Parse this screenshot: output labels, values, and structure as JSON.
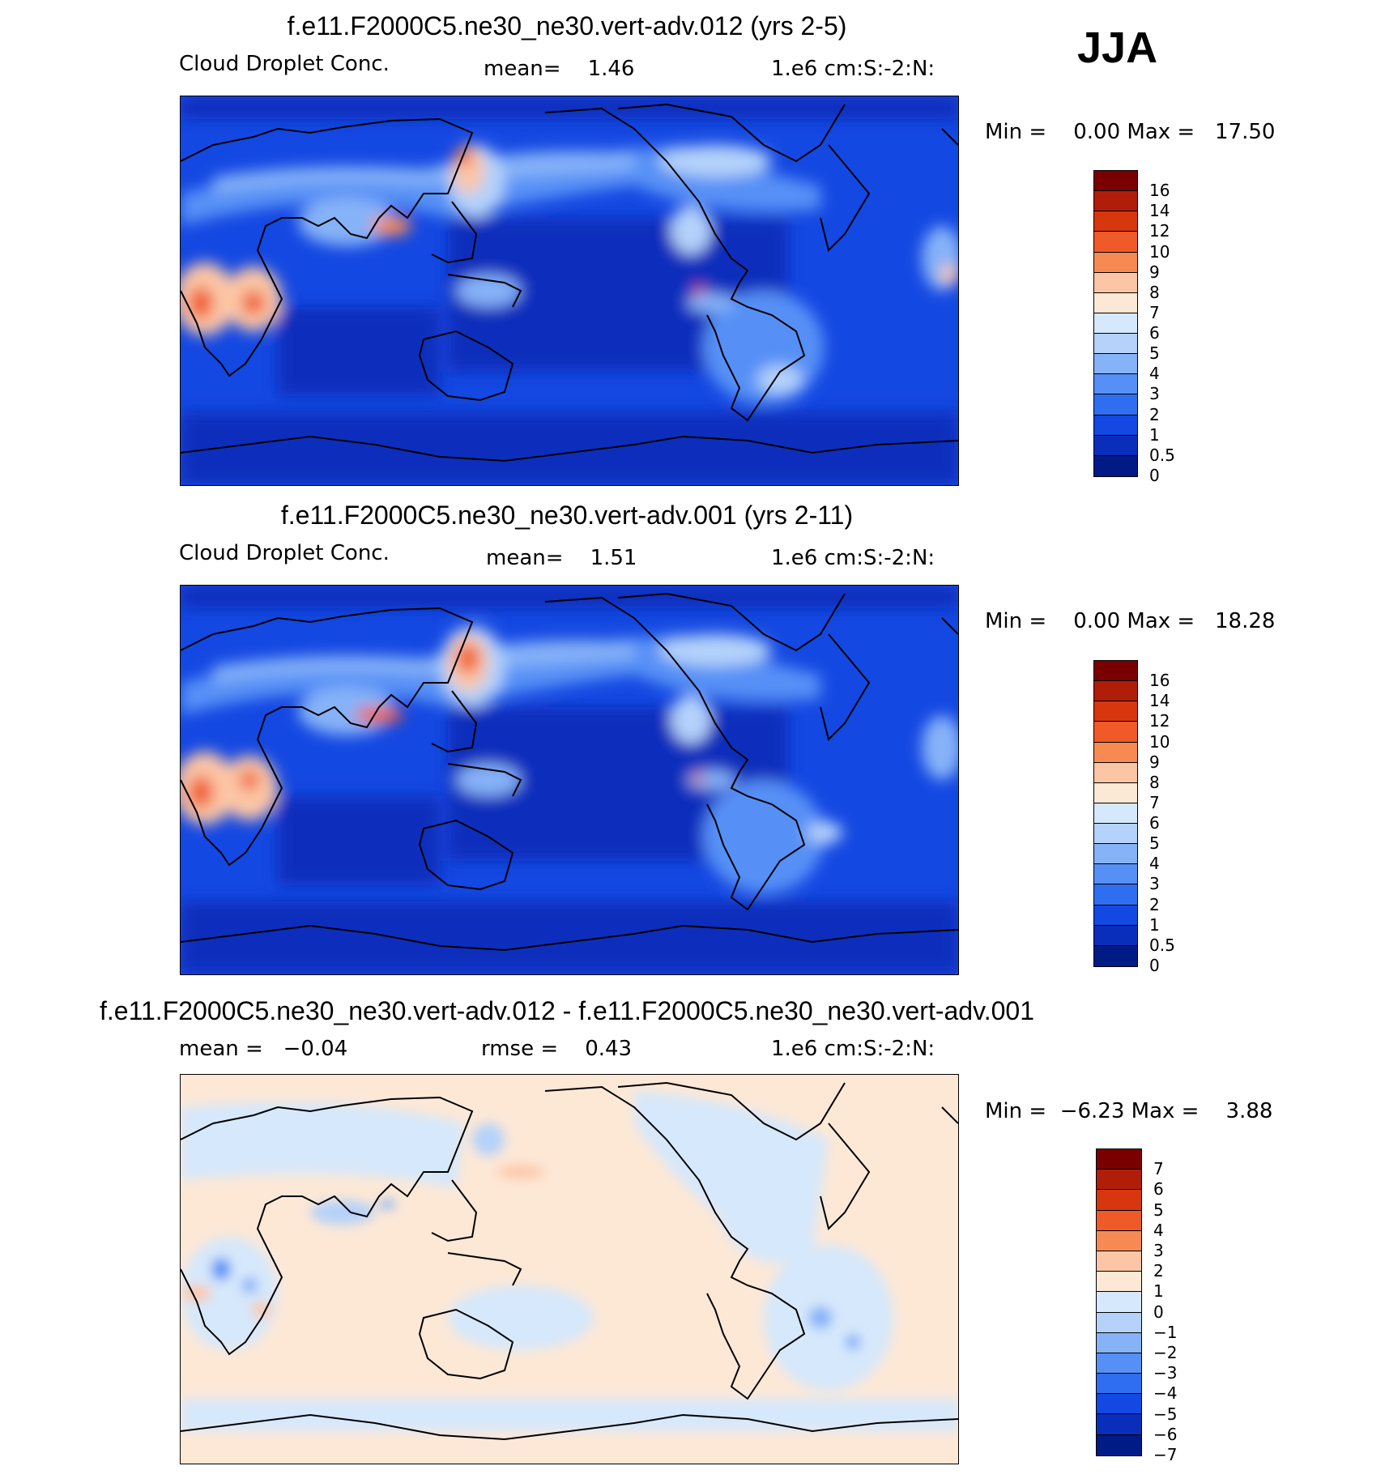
{
  "season": "JJA",
  "panels": [
    {
      "title": "f.e11.F2000C5.ne30_ne30.vert-adv.012 (yrs 2-5)",
      "variable": "Cloud Droplet Conc.",
      "stat": "mean=    1.46",
      "units": "1.e6 cm:S:-2:N:",
      "minmax": "Min =    0.00 Max =   17.50",
      "colorbar_labels": [
        "16",
        "14",
        "12",
        "10",
        "9",
        "8",
        "7",
        "6",
        "5",
        "4",
        "3",
        "2",
        "1",
        "0.5",
        "0"
      ]
    },
    {
      "title": "f.e11.F2000C5.ne30_ne30.vert-adv.001 (yrs 2-11)",
      "variable": "Cloud Droplet Conc.",
      "stat": "mean=    1.51",
      "units": "1.e6 cm:S:-2:N:",
      "minmax": "Min =    0.00 Max =   18.28",
      "colorbar_labels": [
        "16",
        "14",
        "12",
        "10",
        "9",
        "8",
        "7",
        "6",
        "5",
        "4",
        "3",
        "2",
        "1",
        "0.5",
        "0"
      ]
    },
    {
      "title": "f.e11.F2000C5.ne30_ne30.vert-adv.012 - f.e11.F2000C5.ne30_ne30.vert-adv.001",
      "variable": "mean =   −0.04",
      "stat": "rmse =    0.43",
      "units": "1.e6 cm:S:-2:N:",
      "minmax": "Min =  −6.23 Max =    3.88",
      "colorbar_labels": [
        "7",
        "6",
        "5",
        "4",
        "3",
        "2",
        "1",
        "0",
        "−1",
        "−2",
        "−3",
        "−4",
        "−5",
        "−6",
        "−7"
      ]
    }
  ],
  "colors": {
    "abs_scale": [
      "#7a0000",
      "#b01e0a",
      "#d8360e",
      "#ef5a28",
      "#f78a52",
      "#fcc6a6",
      "#fde8d6",
      "#d6e8fb",
      "#b4d2fa",
      "#86b2f8",
      "#5690f6",
      "#2f6ef0",
      "#1448e2",
      "#0a2ebc",
      "#001a86"
    ],
    "diff_scale": [
      "#7a0000",
      "#b01e0a",
      "#d8360e",
      "#ef5a28",
      "#f78a52",
      "#fcc6a6",
      "#fde8d6",
      "#d6e8fb",
      "#b4d2fa",
      "#86b2f8",
      "#5690f6",
      "#2f6ef0",
      "#1448e2",
      "#0a2ebc",
      "#001a86"
    ]
  }
}
